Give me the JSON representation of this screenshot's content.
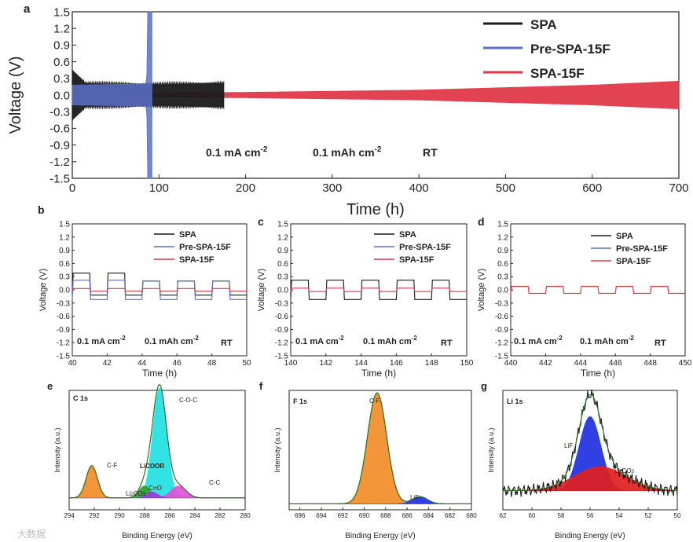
{
  "colors": {
    "SPA": "#1a1a1a",
    "Pre-SPA-15F": "#5a6ec8",
    "SPA-15F": "#e0394a",
    "cf_orange": "#f28c28",
    "coc_cyan": "#22e0e0",
    "cc_magenta": "#e050d8",
    "licoor_green": "#30a030",
    "co_purple": "#9040e0",
    "li2co3_red": "#e02020",
    "lif_blue": "#2030e0",
    "fit_green": "#2a7a2a"
  },
  "chart_data": [
    {
      "id": "a",
      "panel_label": "a",
      "type": "line",
      "xlabel": "Time (h)",
      "ylabel": "Voltage (V)",
      "xlim": [
        0,
        700
      ],
      "ylim": [
        -1.5,
        1.5
      ],
      "xticks": [
        "0",
        "100",
        "200",
        "300",
        "400",
        "500",
        "600",
        "700"
      ],
      "yticks": [
        "1.5",
        "1.2",
        "0.9",
        "0.6",
        "0.3",
        "0.0",
        "-0.3",
        "-0.6",
        "-0.9",
        "-1.2",
        "-1.5"
      ],
      "legend": [
        "SPA",
        "Pre-SPA-15F",
        "SPA-15F"
      ],
      "annotations": [
        "0.1 mA cm",
        "-2",
        "0.1 mAh cm",
        "-2",
        "RT"
      ],
      "series": [
        {
          "name": "SPA",
          "amplitude": [
            [
              0,
              0.22
            ],
            [
              90,
              0.2
            ],
            [
              175,
              0.22
            ]
          ],
          "end": 175
        },
        {
          "name": "Pre-SPA-15F",
          "amplitude": [
            [
              0,
              0.18
            ],
            [
              85,
              0.2
            ],
            [
              92,
              1.5
            ]
          ],
          "end": 92
        },
        {
          "name": "SPA-15F",
          "amplitude": [
            [
              0,
              0.02
            ],
            [
              200,
              0.05
            ],
            [
              400,
              0.09
            ],
            [
              600,
              0.18
            ],
            [
              700,
              0.25
            ]
          ],
          "end": 700
        }
      ]
    },
    {
      "id": "b",
      "panel_label": "b",
      "type": "line",
      "xlabel": "Time (h)",
      "ylabel": "Voltage (V)",
      "xlim": [
        40,
        50
      ],
      "ylim": [
        -1.5,
        1.5
      ],
      "xticks": [
        "40",
        "42",
        "44",
        "46",
        "48",
        "50"
      ],
      "yticks": [
        "1.5",
        "1.2",
        "0.9",
        "0.6",
        "0.3",
        "0.0",
        "-0.3",
        "-0.6",
        "-0.9",
        "-1.2",
        "-1.5"
      ],
      "legend": [
        "SPA",
        "Pre-SPA-15F",
        "SPA-15F"
      ],
      "annotations": [
        "0.1 mA cm",
        "-2",
        "0.1 mAh cm",
        "-2",
        "RT"
      ],
      "series": [
        {
          "name": "SPA",
          "period": 2,
          "start": 40,
          "high": [
            0.38,
            0.38,
            0.2,
            0.2,
            0.2
          ],
          "low": -0.12
        },
        {
          "name": "Pre-SPA-15F",
          "period": 2,
          "start": 40,
          "high": [
            0.22,
            0.22,
            0.2,
            0.2,
            0.2
          ],
          "low": -0.22
        },
        {
          "name": "SPA-15F",
          "period": 2,
          "start": 40,
          "high": [
            0.03,
            0.03,
            0.03,
            0.03,
            0.03
          ],
          "low": -0.03
        }
      ]
    },
    {
      "id": "c",
      "panel_label": "c",
      "type": "line",
      "xlabel": "Time (h)",
      "ylabel": "Voltage (V)",
      "xlim": [
        140,
        150
      ],
      "ylim": [
        -1.5,
        1.5
      ],
      "xticks": [
        "140",
        "142",
        "144",
        "146",
        "148",
        "150"
      ],
      "yticks": [
        "1.5",
        "1.2",
        "0.9",
        "0.6",
        "0.3",
        "0.0",
        "-0.3",
        "-0.6",
        "-0.9",
        "-1.2",
        "-1.5"
      ],
      "legend": [
        "SPA",
        "Pre-SPA-15F",
        "SPA-15F"
      ],
      "annotations": [
        "0.1 mA cm",
        "-2",
        "0.1 mAh cm",
        "-2",
        "RT"
      ],
      "series": [
        {
          "name": "SPA",
          "period": 2,
          "start": 140,
          "high": [
            0.22,
            0.22,
            0.22,
            0.22,
            0.22
          ],
          "low": -0.22
        },
        {
          "name": "SPA-15F",
          "period": 2,
          "start": 140,
          "high": [
            0.04,
            0.04,
            0.04,
            0.04,
            0.04
          ],
          "low": -0.04
        }
      ]
    },
    {
      "id": "d",
      "panel_label": "d",
      "type": "line",
      "xlabel": "Time (h)",
      "ylabel": "Voltage (V)",
      "xlim": [
        440,
        450
      ],
      "ylim": [
        -1.5,
        1.5
      ],
      "xticks": [
        "440",
        "442",
        "444",
        "446",
        "448",
        "450"
      ],
      "yticks": [
        "1.5",
        "1.2",
        "0.9",
        "0.6",
        "0.3",
        "0.0",
        "-0.3",
        "-0.6",
        "-0.9",
        "-1.2",
        "-1.5"
      ],
      "legend": [
        "SPA",
        "Pre-SPA-15F",
        "SPA-15F"
      ],
      "annotations": [
        "0.1 mA cm",
        "-2",
        "0.1 mAh cm",
        "-2",
        "RT"
      ],
      "series": [
        {
          "name": "SPA-15F",
          "period": 2,
          "start": 440,
          "high": [
            0.08,
            0.08,
            0.08,
            0.08,
            0.08
          ],
          "low": -0.08
        }
      ]
    },
    {
      "id": "e",
      "panel_label": "e",
      "type": "area",
      "title": "C 1s",
      "xlabel": "Binding Energy (eV)",
      "ylabel": "Intensity (a.u.)",
      "xlim": [
        294,
        280
      ],
      "xticks": [
        "294",
        "292",
        "290",
        "288",
        "286",
        "284",
        "282",
        "280"
      ],
      "peaks": [
        {
          "label": "C-F",
          "center": 292.2,
          "height": 0.27,
          "width": 0.45,
          "color_key": "cf_orange"
        },
        {
          "label": "C-O-C",
          "center": 286.8,
          "height": 0.92,
          "width": 0.55,
          "color_key": "coc_cyan"
        },
        {
          "label": "C-C",
          "center": 285.3,
          "height": 0.1,
          "width": 0.6,
          "color_key": "cc_magenta"
        },
        {
          "label": "LiCOOR",
          "center": 288.0,
          "height": 0.1,
          "width": 0.45,
          "color_key": "licoor_green"
        },
        {
          "label": "C=O",
          "center": 287.4,
          "height": 0.05,
          "width": 0.45,
          "color_key": "co_purple"
        }
      ],
      "extra_labels": [
        "Li",
        "2",
        "CO",
        "3"
      ]
    },
    {
      "id": "f",
      "panel_label": "f",
      "type": "area",
      "title": "F 1s",
      "xlabel": "Binding Energy (eV)",
      "ylabel": "Intensity (a.u.)",
      "xlim": [
        697,
        680
      ],
      "xticks": [
        "696",
        "694",
        "692",
        "690",
        "688",
        "686",
        "684",
        "682",
        "680"
      ],
      "peaks": [
        {
          "label": "C-F",
          "center": 688.8,
          "height": 0.93,
          "width": 0.9,
          "color_key": "cf_orange"
        },
        {
          "label": "LiF",
          "center": 684.8,
          "height": 0.06,
          "width": 0.7,
          "color_key": "lif_blue"
        }
      ]
    },
    {
      "id": "g",
      "panel_label": "g",
      "type": "area",
      "title": "Li 1s",
      "xlabel": "Binding Energy (eV)",
      "ylabel": "Intensity (a.u.)",
      "xlim": [
        62,
        50
      ],
      "xticks": [
        "62",
        "60",
        "58",
        "56",
        "54",
        "52",
        "50"
      ],
      "peaks": [
        {
          "label": "LiF",
          "center": 56.0,
          "height": 0.62,
          "width": 0.75,
          "color_key": "lif_blue"
        },
        {
          "label": "Li2CO3",
          "center": 55.3,
          "height": 0.2,
          "width": 1.8,
          "color_key": "li2co3_red"
        }
      ],
      "extra_labels": [
        "Li",
        "2",
        "CO",
        "3"
      ]
    }
  ],
  "watermark": "大数据"
}
